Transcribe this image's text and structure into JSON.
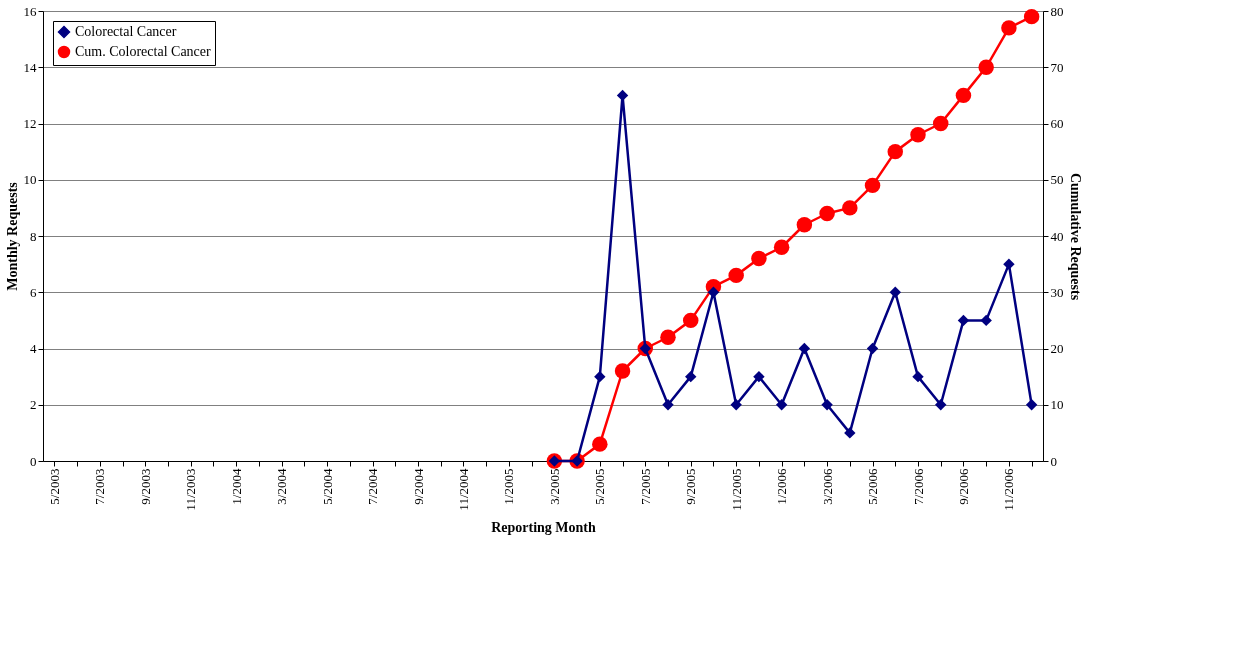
{
  "chart_data": {
    "type": "line",
    "xlabel": "Reporting Month",
    "ylabel": "Monthly Requests",
    "y2label": "Cumulative Requests",
    "categories": [
      "5/2003",
      null,
      "7/2003",
      null,
      "9/2003",
      null,
      "11/2003",
      null,
      "1/2004",
      null,
      "3/2004",
      null,
      "5/2004",
      null,
      "7/2004",
      null,
      "9/2004",
      null,
      "11/2004",
      null,
      "1/2005",
      null,
      "3/2005",
      null,
      "5/2005",
      null,
      "7/2005",
      null,
      "9/2005",
      null,
      "11/2005",
      null,
      "1/2006",
      null,
      "3/2006",
      null,
      "5/2006",
      null,
      "7/2006",
      null,
      "9/2006",
      null,
      "11/2006",
      null
    ],
    "series": [
      {
        "name": "Colorectal Cancer",
        "color": "#000080",
        "marker": "diamond",
        "values": [
          null,
          null,
          null,
          null,
          null,
          null,
          null,
          null,
          null,
          null,
          null,
          null,
          null,
          null,
          null,
          null,
          null,
          null,
          null,
          null,
          null,
          null,
          0,
          0,
          3,
          13,
          4,
          2,
          3,
          6,
          2,
          3,
          2,
          4,
          2,
          1,
          4,
          6,
          3,
          2,
          5,
          5,
          7,
          2
        ]
      },
      {
        "name": "Cum. Colorectal Cancer",
        "color": "#ff0000",
        "marker": "circle",
        "axis": "y2",
        "values": [
          null,
          null,
          null,
          null,
          null,
          null,
          null,
          null,
          null,
          null,
          null,
          null,
          null,
          null,
          null,
          null,
          null,
          null,
          null,
          null,
          null,
          null,
          0,
          0,
          3,
          16,
          20,
          22,
          25,
          31,
          33,
          36,
          38,
          42,
          44,
          45,
          49,
          55,
          58,
          60,
          65,
          70,
          77,
          79
        ]
      }
    ],
    "ylim": [
      0,
      16
    ],
    "yticks": [
      0,
      2,
      4,
      6,
      8,
      10,
      12,
      14,
      16
    ],
    "y2lim": [
      0,
      80
    ],
    "y2ticks": [
      0,
      10,
      20,
      30,
      40,
      50,
      60,
      70,
      80
    ],
    "grid": "y",
    "legend": "top left"
  }
}
